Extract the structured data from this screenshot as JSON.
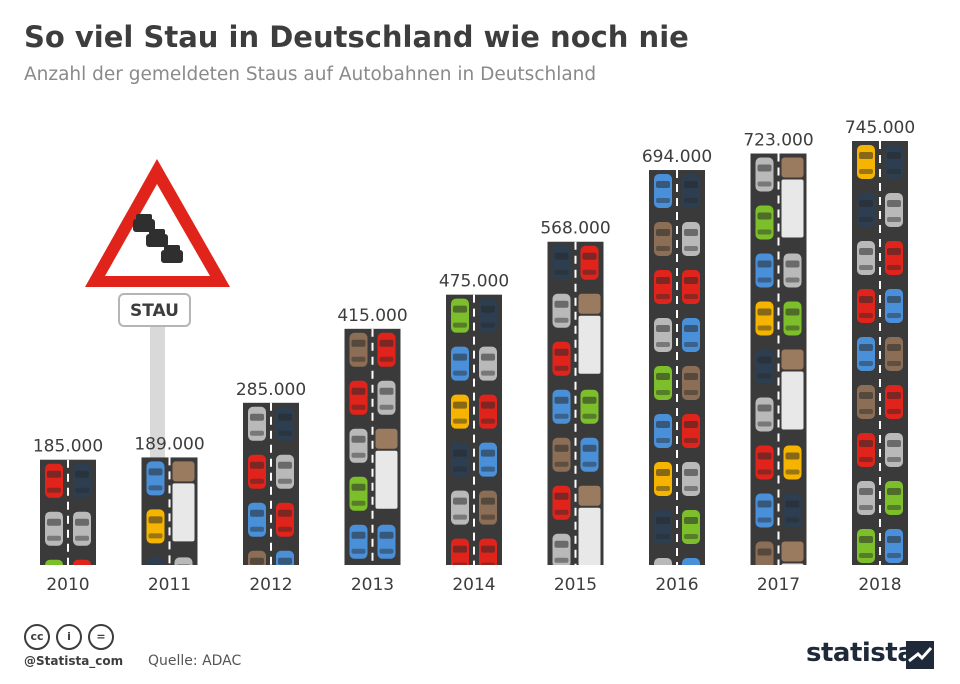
{
  "title": "So viel Stau in Deutschland wie noch nie",
  "subtitle": "Anzahl der gemeldeten Staus auf Autobahnen in Deutschland",
  "chart_data": {
    "type": "bar",
    "categories": [
      "2010",
      "2011",
      "2012",
      "2013",
      "2014",
      "2015",
      "2016",
      "2017",
      "2018"
    ],
    "values": [
      185000,
      189000,
      285000,
      415000,
      475000,
      568000,
      694000,
      723000,
      745000
    ],
    "value_labels": [
      "185.000",
      "189.000",
      "285.000",
      "415.000",
      "475.000",
      "568.000",
      "694.000",
      "723.000",
      "745.000"
    ],
    "ylim": [
      0,
      745000
    ],
    "grid": false,
    "bar_style": "road-with-cars",
    "colors": {
      "road": "#3a3a3a",
      "lane_marking": "#ffffff",
      "car_red": "#e0241b",
      "car_yellow": "#f5b400",
      "car_green": "#7cbf2a",
      "car_blue": "#4a90d9",
      "car_navy": "#2c3e50",
      "car_silver": "#b9b9b9",
      "car_brown": "#8b6e55",
      "truck_cab": "#9a7b60",
      "truck_trailer": "#e8e8e8",
      "truck_grey": "#55606b"
    }
  },
  "sign": {
    "label": "STAU",
    "icon": "traffic-jam-warning-icon",
    "border_color": "#e0241b"
  },
  "footer": {
    "license_icons": [
      "cc-icon",
      "by-icon",
      "nd-icon"
    ],
    "handle": "@Statista_com",
    "source": "Quelle: ADAC",
    "brand": "statista"
  }
}
